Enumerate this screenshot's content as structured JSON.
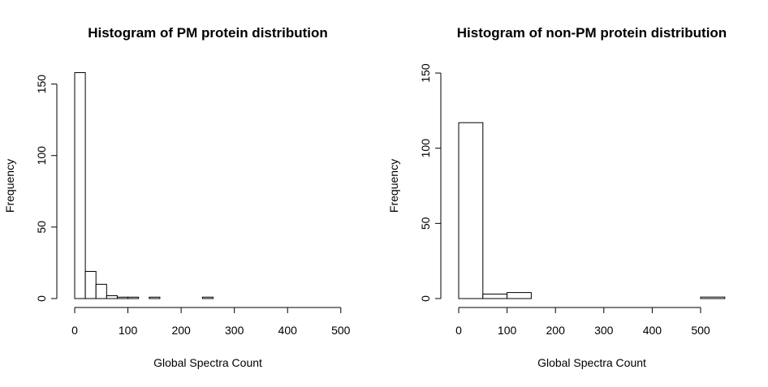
{
  "chart_data": [
    {
      "type": "bar",
      "title": "Histogram of PM protein distribution",
      "xlabel": "Global Spectra Count",
      "ylabel": "Frequency",
      "xlim": [
        0,
        500
      ],
      "ylim": [
        0,
        160
      ],
      "xticks": [
        "0",
        "100",
        "200",
        "300",
        "400",
        "500"
      ],
      "yticks": [
        "0",
        "50",
        "100",
        "150"
      ],
      "bin_width": 20,
      "bins": [
        {
          "x0": 0,
          "x1": 20,
          "count": 158
        },
        {
          "x0": 20,
          "x1": 40,
          "count": 19
        },
        {
          "x0": 40,
          "x1": 60,
          "count": 10
        },
        {
          "x0": 60,
          "x1": 80,
          "count": 2
        },
        {
          "x0": 80,
          "x1": 100,
          "count": 1
        },
        {
          "x0": 100,
          "x1": 120,
          "count": 1
        },
        {
          "x0": 120,
          "x1": 140,
          "count": 0
        },
        {
          "x0": 140,
          "x1": 160,
          "count": 1
        },
        {
          "x0": 160,
          "x1": 180,
          "count": 0
        },
        {
          "x0": 180,
          "x1": 200,
          "count": 0
        },
        {
          "x0": 200,
          "x1": 220,
          "count": 0
        },
        {
          "x0": 220,
          "x1": 240,
          "count": 0
        },
        {
          "x0": 240,
          "x1": 260,
          "count": 1
        }
      ]
    },
    {
      "type": "bar",
      "title": "Histogram of non-PM protein distribution",
      "xlabel": "Global Spectra Count",
      "ylabel": "Frequency",
      "xlim": [
        0,
        550
      ],
      "ylim": [
        0,
        150
      ],
      "xticks": [
        "0",
        "100",
        "200",
        "300",
        "400",
        "500"
      ],
      "yticks": [
        "0",
        "50",
        "100",
        "150"
      ],
      "bin_width": 50,
      "bins": [
        {
          "x0": 0,
          "x1": 50,
          "count": 117
        },
        {
          "x0": 50,
          "x1": 100,
          "count": 3
        },
        {
          "x0": 100,
          "x1": 150,
          "count": 4
        },
        {
          "x0": 150,
          "x1": 200,
          "count": 0
        },
        {
          "x0": 200,
          "x1": 250,
          "count": 0
        },
        {
          "x0": 250,
          "x1": 300,
          "count": 0
        },
        {
          "x0": 300,
          "x1": 350,
          "count": 0
        },
        {
          "x0": 350,
          "x1": 400,
          "count": 0
        },
        {
          "x0": 400,
          "x1": 450,
          "count": 0
        },
        {
          "x0": 450,
          "x1": 500,
          "count": 0
        },
        {
          "x0": 500,
          "x1": 550,
          "count": 1
        }
      ]
    }
  ]
}
